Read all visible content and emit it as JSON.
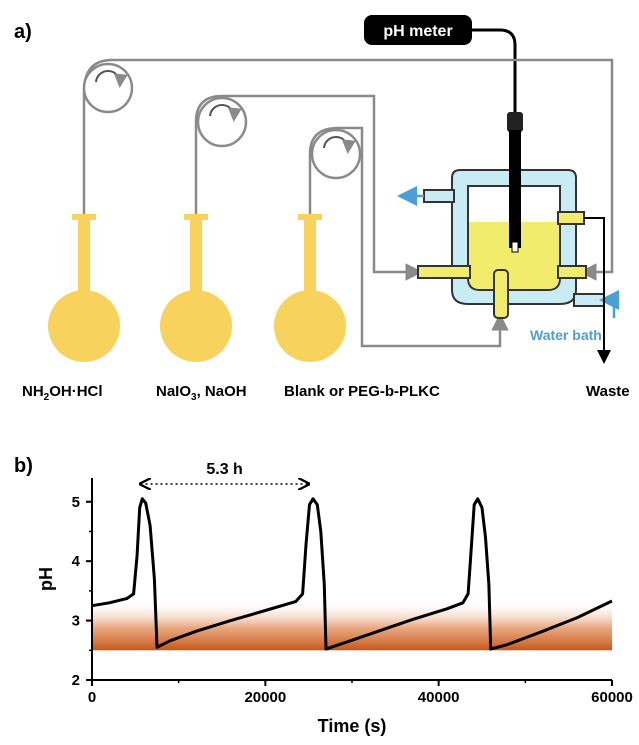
{
  "panel_a": {
    "panel_label": "a)",
    "ph_meter_label": "pH meter",
    "reservoirs": [
      {
        "label_main": "NH",
        "label_sub": "2",
        "label_tail": "OH·HCl"
      },
      {
        "label_main": "NaIO",
        "label_sub": "3",
        "label_tail": ", NaOH"
      },
      {
        "label_main": "Blank or PEG-b-PLKC",
        "label_sub": "",
        "label_tail": ""
      }
    ],
    "water_bath_label": "Water bath",
    "waste_label": "Waste",
    "colors": {
      "solution": "#f7d35e",
      "reactor_jacket": "#c9ecf4",
      "tubing": "#8a8a8a",
      "water_arrow": "#4a9fd6",
      "probe": "#000000"
    }
  },
  "panel_b": {
    "panel_label": "b)",
    "annotation": "5.3 h",
    "chart_data": {
      "type": "line",
      "xlabel": "Time (s)",
      "ylabel": "pH",
      "xlim": [
        0,
        60000
      ],
      "ylim": [
        2,
        5.4
      ],
      "x_ticks": [
        0,
        20000,
        40000,
        60000
      ],
      "y_ticks": [
        2,
        3,
        4,
        5
      ],
      "x_tick_labels": [
        "0",
        "20000",
        "40000",
        "60000"
      ],
      "y_tick_labels": [
        "2",
        "3",
        "4",
        "5"
      ],
      "period_annotation": {
        "from_x": 5600,
        "to_x": 25000,
        "y": 5.3
      },
      "shaded_band": {
        "y_from": 2.5,
        "y_to": 3.35,
        "color_bottom": "#c8571a",
        "color_top": "#ffffff"
      },
      "series": [
        {
          "color": "#000000",
          "points": [
            [
              0,
              3.25
            ],
            [
              2000,
              3.3
            ],
            [
              4000,
              3.37
            ],
            [
              4800,
              3.45
            ],
            [
              5200,
              4.1
            ],
            [
              5500,
              4.9
            ],
            [
              5800,
              5.05
            ],
            [
              6200,
              4.98
            ],
            [
              6700,
              4.6
            ],
            [
              7200,
              3.7
            ],
            [
              7500,
              2.55
            ],
            [
              9000,
              2.66
            ],
            [
              12000,
              2.82
            ],
            [
              16000,
              3.0
            ],
            [
              20000,
              3.17
            ],
            [
              23500,
              3.32
            ],
            [
              24300,
              3.45
            ],
            [
              24700,
              4.3
            ],
            [
              25100,
              4.95
            ],
            [
              25500,
              5.05
            ],
            [
              26000,
              4.95
            ],
            [
              26400,
              4.5
            ],
            [
              26800,
              3.6
            ],
            [
              27000,
              2.52
            ],
            [
              29000,
              2.62
            ],
            [
              33000,
              2.82
            ],
            [
              37000,
              3.02
            ],
            [
              41000,
              3.2
            ],
            [
              42800,
              3.3
            ],
            [
              43400,
              3.45
            ],
            [
              43800,
              4.3
            ],
            [
              44100,
              4.95
            ],
            [
              44500,
              5.05
            ],
            [
              45000,
              4.9
            ],
            [
              45400,
              4.4
            ],
            [
              45800,
              3.6
            ],
            [
              46000,
              2.52
            ],
            [
              48000,
              2.6
            ],
            [
              52000,
              2.82
            ],
            [
              56000,
              3.05
            ],
            [
              60000,
              3.33
            ]
          ]
        }
      ]
    }
  }
}
